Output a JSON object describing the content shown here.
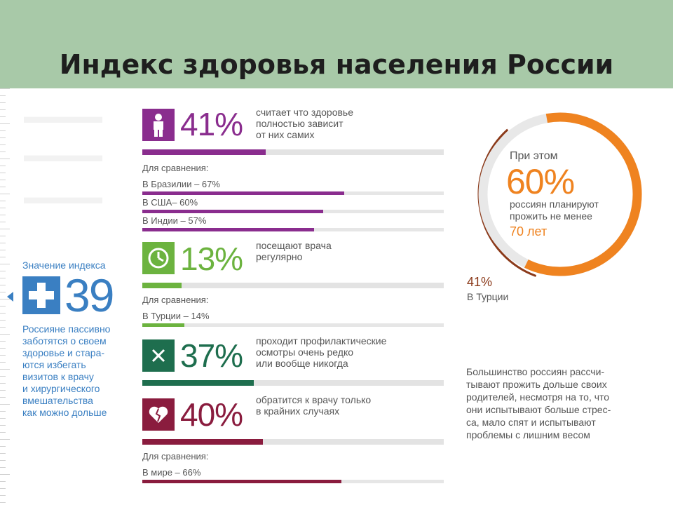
{
  "title": "Индекс здоровья населения России",
  "index": {
    "label": "Значение индекса",
    "value": "39",
    "description": [
      "Россияне пассивно",
      "заботятся о своем",
      "здоровье и стара-",
      "ются избегать",
      "визитов к врачу",
      "и хирургического",
      "вмешательства",
      "как можно дольше"
    ],
    "accent_color": "#3a7fc2"
  },
  "stats": [
    {
      "percent_text": "41%",
      "percent_value": 41,
      "text": [
        "считает что здоровье",
        "полностью зависит",
        "от них самих"
      ],
      "color": "#8a2d8e",
      "icon": "person-icon",
      "comparison_label": "Для сравнения:",
      "comparisons": [
        {
          "label": "В Бразилии – 67%",
          "value": 67
        },
        {
          "label": "В США– 60%",
          "value": 60
        },
        {
          "label": "В Индии – 57%",
          "value": 57
        }
      ]
    },
    {
      "percent_text": "13%",
      "percent_value": 13,
      "text": [
        "посещают врача",
        "регулярно"
      ],
      "color": "#6cb33f",
      "icon": "clock-icon",
      "comparison_label": "Для сравнения:",
      "comparisons": [
        {
          "label": "В Турции – 14%",
          "value": 14
        }
      ]
    },
    {
      "percent_text": "37%",
      "percent_value": 37,
      "text": [
        "проходит профилактические",
        "осмотры очень редко",
        "или вообще никогда"
      ],
      "color": "#1e6e4e",
      "icon": "x-icon",
      "comparison_label": "",
      "comparisons": []
    },
    {
      "percent_text": "40%",
      "percent_value": 40,
      "text": [
        "обратится к врачу только",
        "в крайних случаях"
      ],
      "color": "#8a1c3e",
      "icon": "broken-heart-icon",
      "comparison_label": "Для сравнения:",
      "comparisons": [
        {
          "label": "В мире – 66%",
          "value": 66
        }
      ]
    }
  ],
  "ring": {
    "top_text": "При этом",
    "big_text": "60%",
    "value": 60,
    "mid_text": [
      "россиян планируют",
      "прожить не менее"
    ],
    "age_text": "70 лет",
    "color": "#ef8320",
    "inner_color": "#8b3a1a",
    "turkey_pct": "41%",
    "turkey_value": 41,
    "turkey_label": "В Турции"
  },
  "right_paragraph": [
    "Большинство россиян рассчи-",
    "тывают прожить дольше своих",
    "родителей, несмотря на то, что",
    "они испытывают больше стрес-",
    "са, мало спят и испытывают",
    "проблемы с лишним весом"
  ],
  "colors": {
    "header_bg": "#a8c9a8",
    "title": "#1e1e1e"
  }
}
